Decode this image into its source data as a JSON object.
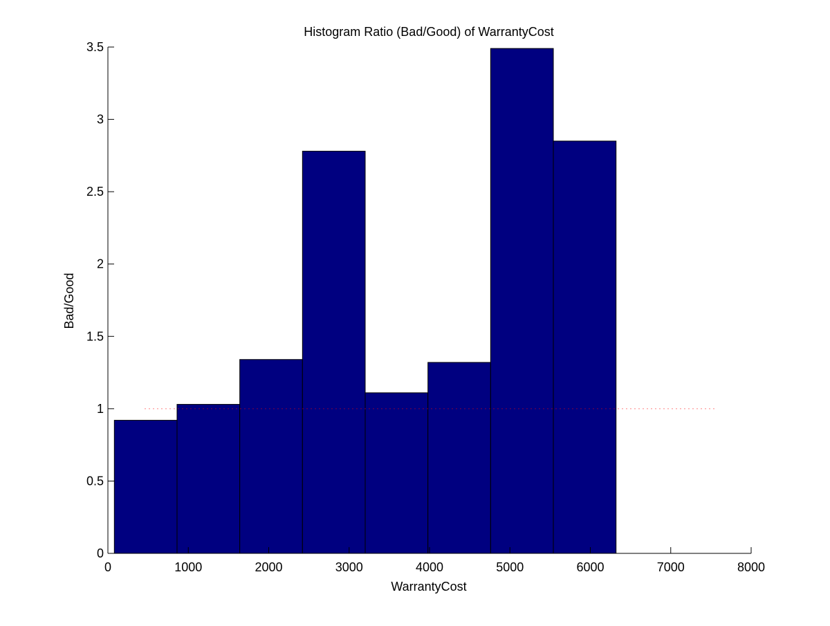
{
  "chart_data": {
    "type": "bar",
    "title": "Histogram Ratio (Bad/Good) of WarrantyCost",
    "xlabel": "WarrantyCost",
    "ylabel": "Bad/Good",
    "xlim": [
      0,
      8000
    ],
    "ylim": [
      0,
      3.5
    ],
    "xticks": [
      0,
      1000,
      2000,
      3000,
      4000,
      5000,
      6000,
      7000,
      8000
    ],
    "yticks": [
      0,
      0.5,
      1,
      1.5,
      2,
      2.5,
      3,
      3.5
    ],
    "xtick_labels": [
      "0",
      "1000",
      "2000",
      "3000",
      "4000",
      "5000",
      "6000",
      "7000",
      "8000"
    ],
    "ytick_labels": [
      "0",
      "0.5",
      "1",
      "1.5",
      "2",
      "2.5",
      "3",
      "3.5"
    ],
    "bins": [
      {
        "start": 80,
        "end": 860,
        "value": 0.92
      },
      {
        "start": 860,
        "end": 1640,
        "value": 1.03
      },
      {
        "start": 1640,
        "end": 2420,
        "value": 1.34
      },
      {
        "start": 2420,
        "end": 3200,
        "value": 2.78
      },
      {
        "start": 3200,
        "end": 3980,
        "value": 1.11
      },
      {
        "start": 3980,
        "end": 4760,
        "value": 1.32
      },
      {
        "start": 4760,
        "end": 5540,
        "value": 3.49
      },
      {
        "start": 5540,
        "end": 6320,
        "value": 2.85
      }
    ],
    "reference_line": {
      "y": 1,
      "x_start": 460,
      "x_end": 7540,
      "color": "#ff0000",
      "style": "dotted"
    },
    "bar_color": "#000080",
    "bar_edge_color": "#000000",
    "grid": false,
    "legend": "none"
  }
}
